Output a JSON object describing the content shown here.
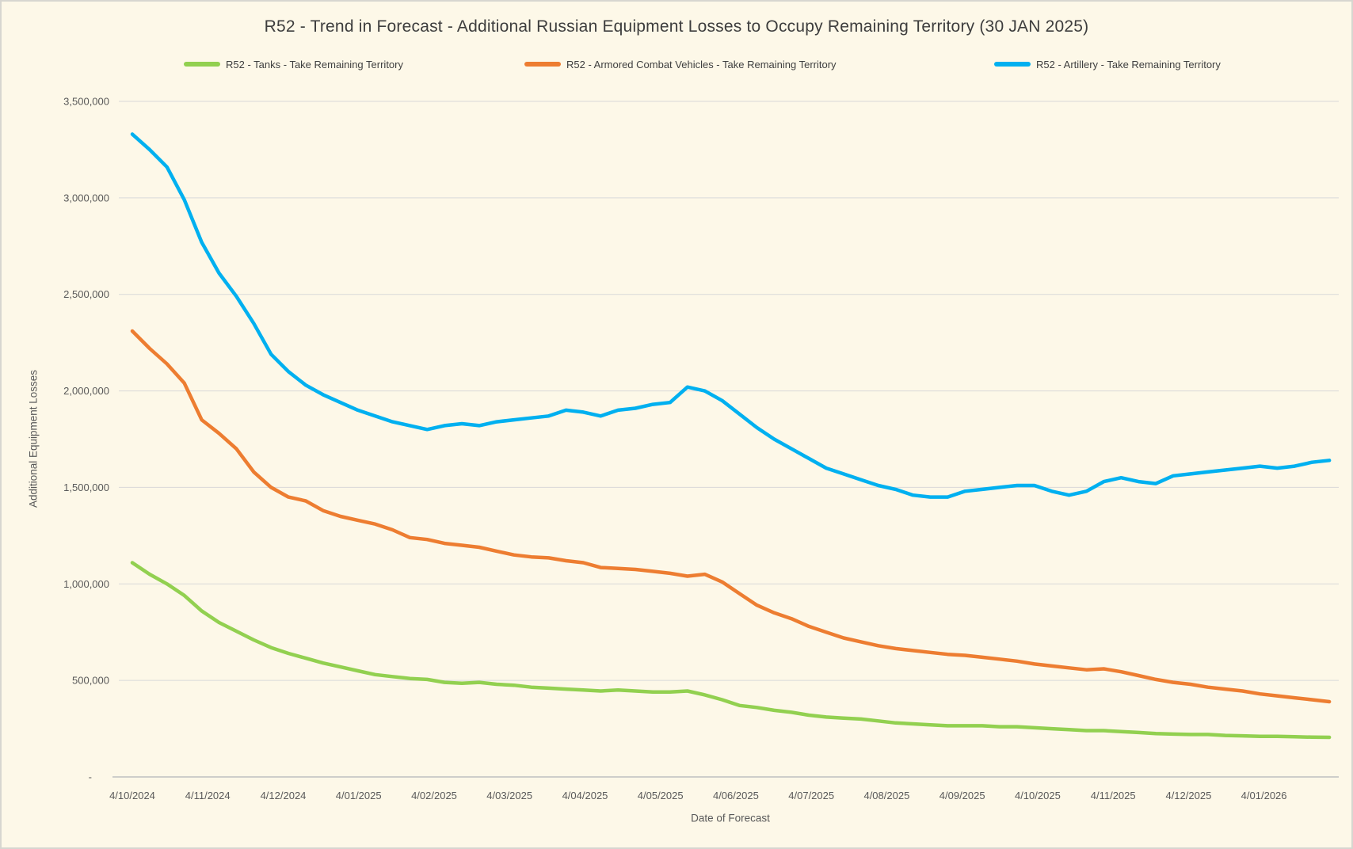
{
  "title": "R52 - Trend in Forecast - Additional Russian Equipment Losses to Occupy Remaining Territory (30 JAN 2025)",
  "colors": {
    "background": "#FDF8E8",
    "gridline": "#D9D9D9",
    "axis_line": "#BFBFBF",
    "title_text": "#3D3D3D",
    "tick_text": "#595959"
  },
  "chart_data": {
    "type": "line",
    "title": "R52 - Trend in Forecast - Additional Russian Equipment Losses to Occupy Remaining Territory (30 JAN 2025)",
    "xlabel": "Date of Forecast",
    "ylabel": "Additional Equipment Losses",
    "ylim": [
      0,
      3500000
    ],
    "grid": "horizontal",
    "legend_position": "top",
    "y_tick_values": [
      3500000,
      3000000,
      2500000,
      2000000,
      1500000,
      1000000,
      500000,
      0
    ],
    "y_tick_labels": [
      "3,500,000",
      "3,000,000",
      "2,500,000",
      "2,000,000",
      "1,500,000",
      "1,000,000",
      "500,000",
      "-"
    ],
    "x_tick_labels": [
      "4/10/2024",
      "4/11/2024",
      "4/12/2024",
      "4/01/2025",
      "4/02/2025",
      "4/03/2025",
      "4/04/2025",
      "4/05/2025",
      "4/06/2025",
      "4/07/2025",
      "4/08/2025",
      "4/09/2025",
      "4/10/2025",
      "4/11/2025",
      "4/12/2025",
      "4/01/2026"
    ],
    "x_sampling": "weekly",
    "weeks_per_month_tick": 4.349,
    "series": [
      {
        "name": "R52 - Tanks - Take Remaining Territory",
        "color": "#92D050",
        "values": [
          1110000,
          1050000,
          1000000,
          940000,
          860000,
          800000,
          755000,
          710000,
          670000,
          640000,
          615000,
          590000,
          570000,
          550000,
          530000,
          520000,
          510000,
          505000,
          490000,
          485000,
          490000,
          480000,
          475000,
          465000,
          460000,
          455000,
          450000,
          445000,
          450000,
          445000,
          440000,
          440000,
          445000,
          425000,
          400000,
          370000,
          360000,
          345000,
          335000,
          320000,
          310000,
          305000,
          300000,
          290000,
          280000,
          275000,
          270000,
          265000,
          265000,
          265000,
          260000,
          260000,
          255000,
          250000,
          245000,
          240000,
          240000,
          235000,
          230000,
          225000,
          222000,
          220000,
          220000,
          215000,
          213000,
          210000,
          210000,
          208000,
          206000,
          205000
        ]
      },
      {
        "name": "R52 - Armored Combat Vehicles - Take Remaining Territory",
        "color": "#ED7D31",
        "values": [
          2310000,
          2220000,
          2140000,
          2040000,
          1850000,
          1780000,
          1700000,
          1580000,
          1500000,
          1450000,
          1430000,
          1380000,
          1350000,
          1330000,
          1310000,
          1280000,
          1240000,
          1230000,
          1210000,
          1200000,
          1190000,
          1170000,
          1150000,
          1140000,
          1135000,
          1120000,
          1110000,
          1085000,
          1080000,
          1075000,
          1065000,
          1055000,
          1040000,
          1050000,
          1010000,
          950000,
          890000,
          850000,
          820000,
          780000,
          750000,
          720000,
          700000,
          680000,
          665000,
          655000,
          645000,
          635000,
          630000,
          620000,
          610000,
          600000,
          585000,
          575000,
          565000,
          555000,
          560000,
          545000,
          525000,
          505000,
          490000,
          480000,
          465000,
          455000,
          445000,
          430000,
          420000,
          410000,
          400000,
          390000
        ]
      },
      {
        "name": "R52 - Artillery - Take Remaining Territory",
        "color": "#00B0F0",
        "values": [
          3330000,
          3250000,
          3160000,
          2990000,
          2770000,
          2610000,
          2490000,
          2350000,
          2190000,
          2100000,
          2030000,
          1980000,
          1940000,
          1900000,
          1870000,
          1840000,
          1820000,
          1800000,
          1820000,
          1830000,
          1820000,
          1840000,
          1850000,
          1860000,
          1870000,
          1900000,
          1890000,
          1870000,
          1900000,
          1910000,
          1930000,
          1940000,
          2020000,
          2000000,
          1950000,
          1880000,
          1810000,
          1750000,
          1700000,
          1650000,
          1600000,
          1570000,
          1540000,
          1510000,
          1490000,
          1460000,
          1450000,
          1450000,
          1480000,
          1490000,
          1500000,
          1510000,
          1510000,
          1480000,
          1460000,
          1480000,
          1530000,
          1550000,
          1530000,
          1520000,
          1560000,
          1570000,
          1580000,
          1590000,
          1600000,
          1610000,
          1600000,
          1610000,
          1630000,
          1640000
        ]
      }
    ]
  }
}
